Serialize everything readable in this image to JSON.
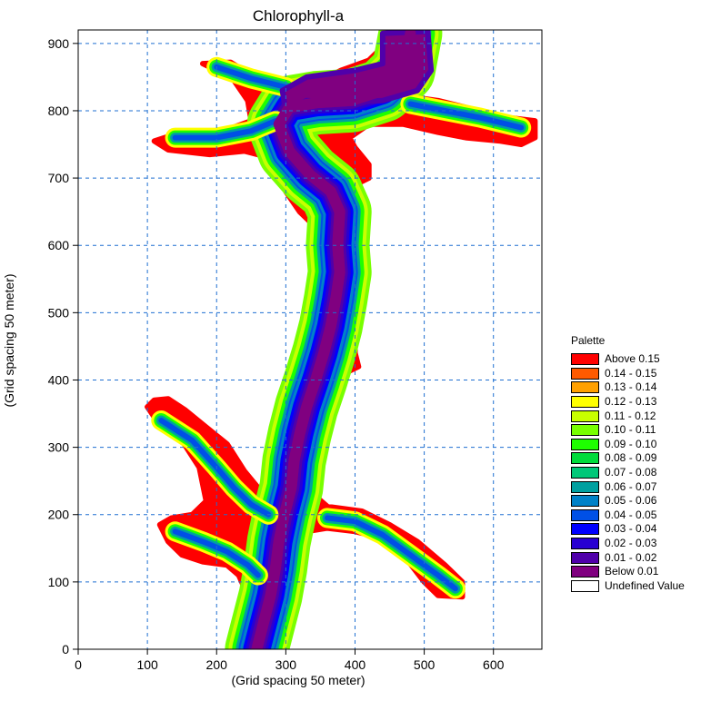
{
  "map": {
    "title": "Chlorophyll-a",
    "xlabel": "(Grid spacing 50 meter)",
    "ylabel": "(Grid spacing 50 meter)",
    "x_ticks": [
      "0",
      "100",
      "200",
      "300",
      "400",
      "500",
      "600"
    ],
    "y_ticks": [
      "0",
      "100",
      "200",
      "300",
      "400",
      "500",
      "600",
      "700",
      "800",
      "900"
    ],
    "x_range": [
      0,
      670
    ],
    "y_range": [
      0,
      920
    ],
    "grid": true,
    "grid_color": "#1f6fd1",
    "background": "#ffffff"
  },
  "legend": {
    "title": "Palette",
    "placement": "right",
    "entries": [
      {
        "label": "Above 0.15",
        "color": "#ff0000"
      },
      {
        "label": "0.14 - 0.15",
        "color": "#ff5a00"
      },
      {
        "label": "0.13 - 0.14",
        "color": "#ffa000"
      },
      {
        "label": "0.12 - 0.13",
        "color": "#ffff00"
      },
      {
        "label": "0.11 - 0.12",
        "color": "#c8ff00"
      },
      {
        "label": "0.10 - 0.11",
        "color": "#78ff00"
      },
      {
        "label": "0.09 - 0.10",
        "color": "#1eff00"
      },
      {
        "label": "0.08 - 0.09",
        "color": "#00dc3c"
      },
      {
        "label": "0.07 - 0.08",
        "color": "#00c878"
      },
      {
        "label": "0.06 - 0.07",
        "color": "#00a0a0"
      },
      {
        "label": "0.05 - 0.06",
        "color": "#0082c8"
      },
      {
        "label": "0.04 - 0.05",
        "color": "#0050e6"
      },
      {
        "label": "0.03 - 0.04",
        "color": "#0000ff"
      },
      {
        "label": "0.02 - 0.03",
        "color": "#2800d2"
      },
      {
        "label": "0.01 - 0.02",
        "color": "#5000aa"
      },
      {
        "label": "Below 0.01",
        "color": "#800080"
      },
      {
        "label": "Undefined Value",
        "color": "#ffffff"
      }
    ]
  }
}
